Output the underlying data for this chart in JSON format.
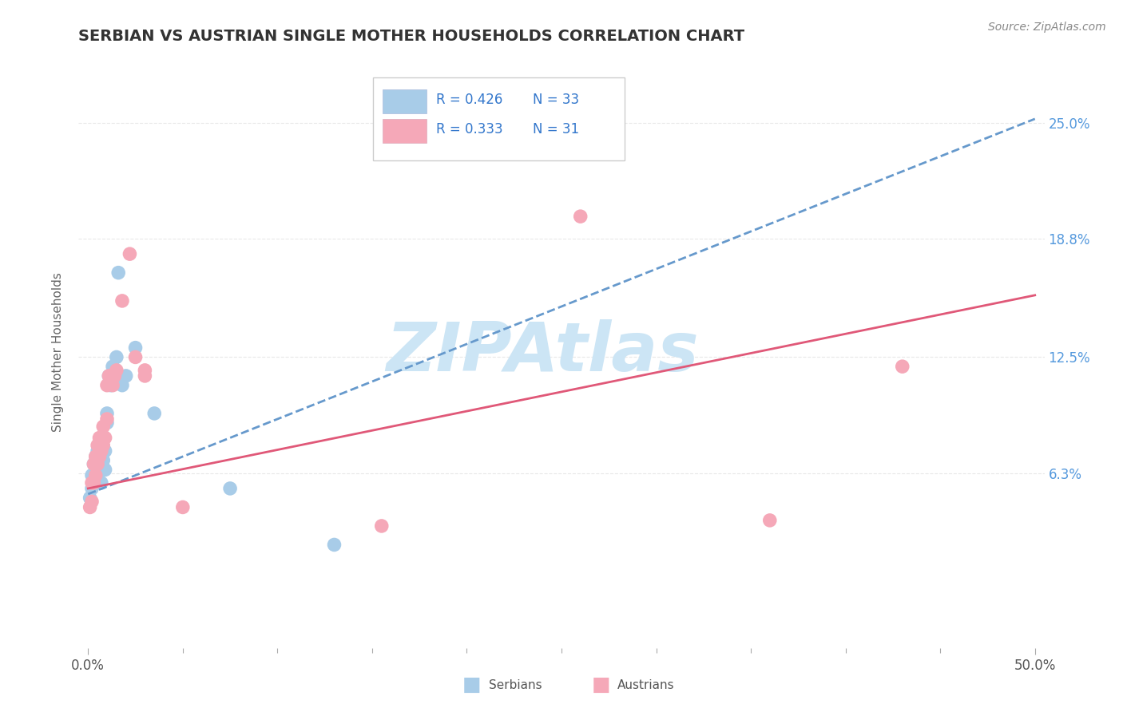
{
  "title": "SERBIAN VS AUSTRIAN SINGLE MOTHER HOUSEHOLDS CORRELATION CHART",
  "source": "Source: ZipAtlas.com",
  "ylabel": "Single Mother Households",
  "xlim": [
    -0.005,
    0.505
  ],
  "ylim": [
    -0.03,
    0.285
  ],
  "ytick_labels_right": [
    "6.3%",
    "12.5%",
    "18.8%",
    "25.0%"
  ],
  "ytick_positions_right": [
    0.063,
    0.125,
    0.188,
    0.25
  ],
  "xtick_positions": [
    0.0,
    0.5
  ],
  "xtick_labels": [
    "0.0%",
    "50.0%"
  ],
  "legend_r1": "R = 0.426",
  "legend_n1": "N = 33",
  "legend_r2": "R = 0.333",
  "legend_n2": "N = 31",
  "serbian_color": "#a8cce8",
  "austrian_color": "#f5a8b8",
  "serbian_line_color": "#6699cc",
  "austrian_line_color": "#e05878",
  "serbian_line_style": "dashed",
  "austrian_line_style": "solid",
  "watermark": "ZIPAtlas",
  "watermark_color": "#cce5f5",
  "grid_color": "#e8e8e8",
  "background_color": "#ffffff",
  "serbians_x": [
    0.001,
    0.002,
    0.002,
    0.003,
    0.003,
    0.003,
    0.004,
    0.004,
    0.005,
    0.005,
    0.005,
    0.006,
    0.006,
    0.007,
    0.007,
    0.007,
    0.008,
    0.008,
    0.009,
    0.009,
    0.01,
    0.01,
    0.011,
    0.012,
    0.013,
    0.015,
    0.016,
    0.018,
    0.02,
    0.025,
    0.035,
    0.075,
    0.13
  ],
  "serbians_y": [
    0.05,
    0.062,
    0.055,
    0.068,
    0.058,
    0.06,
    0.072,
    0.065,
    0.07,
    0.06,
    0.075,
    0.078,
    0.068,
    0.08,
    0.058,
    0.065,
    0.082,
    0.07,
    0.075,
    0.065,
    0.09,
    0.095,
    0.115,
    0.11,
    0.12,
    0.125,
    0.17,
    0.11,
    0.115,
    0.13,
    0.095,
    0.055,
    0.025
  ],
  "austrians_x": [
    0.001,
    0.002,
    0.002,
    0.003,
    0.003,
    0.004,
    0.004,
    0.005,
    0.005,
    0.006,
    0.006,
    0.007,
    0.008,
    0.008,
    0.009,
    0.01,
    0.01,
    0.011,
    0.013,
    0.014,
    0.015,
    0.018,
    0.022,
    0.025,
    0.03,
    0.03,
    0.05,
    0.155,
    0.26,
    0.36,
    0.43
  ],
  "austrians_y": [
    0.045,
    0.058,
    0.048,
    0.068,
    0.058,
    0.072,
    0.062,
    0.078,
    0.068,
    0.082,
    0.072,
    0.075,
    0.088,
    0.078,
    0.082,
    0.092,
    0.11,
    0.115,
    0.11,
    0.115,
    0.118,
    0.155,
    0.18,
    0.125,
    0.115,
    0.118,
    0.045,
    0.035,
    0.2,
    0.038,
    0.12
  ],
  "serbian_trend_x": [
    0.0,
    0.5
  ],
  "serbian_trend_y": [
    0.052,
    0.252
  ],
  "austrian_trend_x": [
    0.0,
    0.5
  ],
  "austrian_trend_y": [
    0.055,
    0.158
  ]
}
